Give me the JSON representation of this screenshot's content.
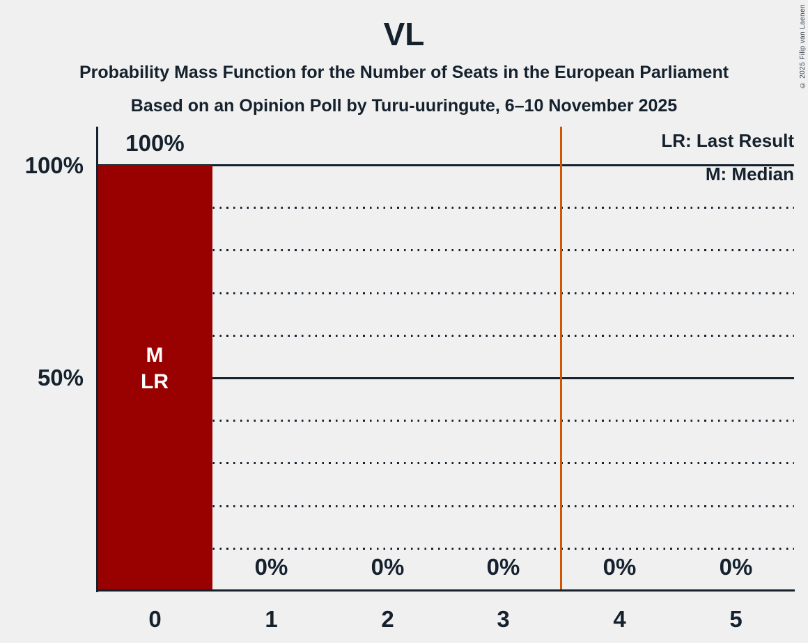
{
  "meta": {
    "copyright": "© 2025 Filip van Laenen"
  },
  "header": {
    "title": "VL",
    "subtitle1": "Probability Mass Function for the Number of Seats in the European Parliament",
    "subtitle2": "Based on an Opinion Poll by Turu-uuringute, 6–10 November 2025"
  },
  "legend": {
    "last_result": "LR: Last Result",
    "median": "M: Median"
  },
  "colors": {
    "background": "#F0F0F0",
    "ink": "#15212D",
    "bar": "#990000",
    "majority_line": "#D45500",
    "bar_annotation_text": "#FFFFFF"
  },
  "chart_data": {
    "type": "bar",
    "title": "VL",
    "categories": [
      "0",
      "1",
      "2",
      "3",
      "4",
      "5"
    ],
    "values": [
      100,
      0,
      0,
      0,
      0,
      0
    ],
    "value_labels": [
      "100%",
      "0%",
      "0%",
      "0%",
      "0%",
      "0%"
    ],
    "ylim": [
      0,
      100
    ],
    "ytick_labels": [
      "100%",
      "50%"
    ],
    "ytick_positions": [
      100,
      50
    ],
    "solid_gridlines": [
      100,
      50,
      0
    ],
    "dotted_gridlines": [
      90,
      80,
      70,
      60,
      40,
      30,
      20,
      10
    ],
    "legend_entries": [
      "LR: Last Result",
      "M: Median"
    ],
    "annotations": {
      "bar": "0",
      "labels": [
        "M",
        "LR"
      ]
    },
    "majority_line_at": 3.5,
    "grid": "horizontal-only",
    "legend_position": "top-right"
  }
}
